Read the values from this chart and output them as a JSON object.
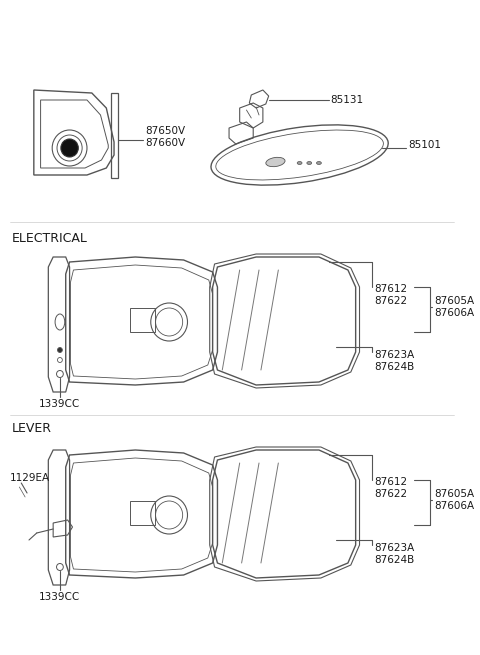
{
  "background_color": "#ffffff",
  "text_color": "#1a1a1a",
  "line_color": "#555555",
  "labels": {
    "87650V": "87650V\n87660V",
    "85131": "85131",
    "85101": "85101",
    "ELECTRICAL": "ELECTRICAL",
    "LEVER": "LEVER",
    "1339CC": "1339CC",
    "1129EA": "1129EA",
    "87612_87622": "87612\n87622",
    "87605A_87606A": "87605A\n87606A",
    "87623A_87624B": "87623A\n87624B"
  },
  "fontsize_label": 7.5,
  "fontsize_section": 9
}
